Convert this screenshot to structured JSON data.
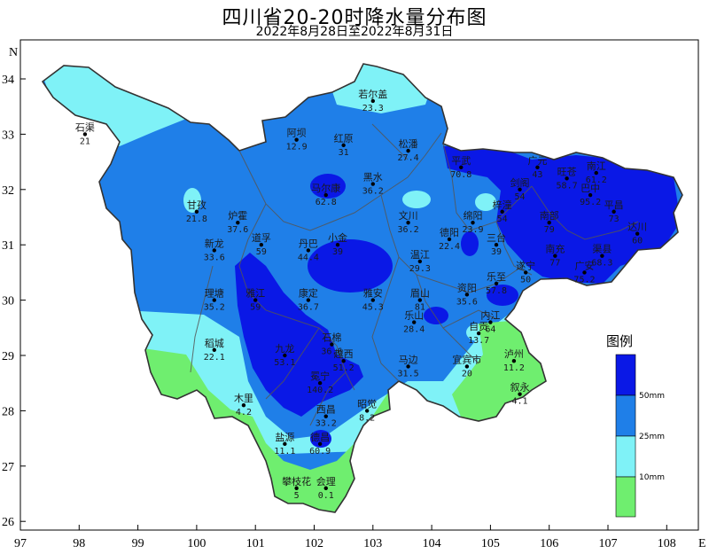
{
  "title": "四川省20-20时降水量分布图",
  "subtitle": "2022年8月28日至2022年8月31日",
  "axes": {
    "x_ticks": [
      "97",
      "98",
      "99",
      "100",
      "101",
      "102",
      "103",
      "104",
      "105",
      "106",
      "107",
      "108"
    ],
    "y_ticks": [
      "34",
      "33",
      "32",
      "31",
      "30",
      "29",
      "28",
      "27",
      "26"
    ],
    "x_label": "E",
    "y_label": "N"
  },
  "legend": {
    "title": "图例",
    "levels": [
      {
        "label": "50mm",
        "color": "#0a18e6"
      },
      {
        "label": "25mm",
        "color": "#1f7fe8"
      },
      {
        "label": "10mm",
        "color": "#7ff2f7"
      },
      {
        "label": "",
        "color": "#6fee6f"
      }
    ]
  },
  "colors": {
    "heavy": "#0a18e6",
    "medium": "#1f7fe8",
    "light": "#7ff2f7",
    "low": "#6fee6f"
  },
  "stations": [
    {
      "name": "若尔盖",
      "value": "23.3",
      "lon": 103.0,
      "lat": 33.6
    },
    {
      "name": "石渠",
      "value": "21",
      "lon": 98.1,
      "lat": 33.0
    },
    {
      "name": "阿坝",
      "value": "12.9",
      "lon": 101.7,
      "lat": 32.9
    },
    {
      "name": "红原",
      "value": "31",
      "lon": 102.5,
      "lat": 32.8
    },
    {
      "name": "松潘",
      "value": "27.4",
      "lon": 103.6,
      "lat": 32.7
    },
    {
      "name": "平武",
      "value": "70.8",
      "lon": 104.5,
      "lat": 32.4
    },
    {
      "name": "广元",
      "value": "43",
      "lon": 105.8,
      "lat": 32.4
    },
    {
      "name": "旺苍",
      "value": "58.7",
      "lon": 106.3,
      "lat": 32.2
    },
    {
      "name": "南江",
      "value": "61.2",
      "lon": 106.8,
      "lat": 32.3
    },
    {
      "name": "剑阁",
      "value": "54",
      "lon": 105.5,
      "lat": 32.0
    },
    {
      "name": "巴中",
      "value": "95.2",
      "lon": 106.7,
      "lat": 31.9
    },
    {
      "name": "平昌",
      "value": "73",
      "lon": 107.1,
      "lat": 31.6
    },
    {
      "name": "黑水",
      "value": "36.2",
      "lon": 103.0,
      "lat": 32.1
    },
    {
      "name": "马尔康",
      "value": "62.8",
      "lon": 102.2,
      "lat": 31.9
    },
    {
      "name": "甘孜",
      "value": "21.8",
      "lon": 100.0,
      "lat": 31.6
    },
    {
      "name": "炉霍",
      "value": "37.6",
      "lon": 100.7,
      "lat": 31.4
    },
    {
      "name": "文川",
      "value": "36.2",
      "lon": 103.6,
      "lat": 31.4
    },
    {
      "name": "绵阳",
      "value": "23.9",
      "lon": 104.7,
      "lat": 31.4
    },
    {
      "name": "梓潼",
      "value": "54",
      "lon": 105.2,
      "lat": 31.6
    },
    {
      "name": "南部",
      "value": "79",
      "lon": 106.0,
      "lat": 31.4
    },
    {
      "name": "达川",
      "value": "60",
      "lon": 107.5,
      "lat": 31.2
    },
    {
      "name": "新龙",
      "value": "33.6",
      "lon": 100.3,
      "lat": 30.9
    },
    {
      "name": "道孚",
      "value": "59",
      "lon": 101.1,
      "lat": 31.0
    },
    {
      "name": "丹巴",
      "value": "44.4",
      "lon": 101.9,
      "lat": 30.9
    },
    {
      "name": "小金",
      "value": "39",
      "lon": 102.4,
      "lat": 31.0
    },
    {
      "name": "德阳",
      "value": "22.4",
      "lon": 104.3,
      "lat": 31.1
    },
    {
      "name": "三台",
      "value": "39",
      "lon": 105.1,
      "lat": 31.0
    },
    {
      "name": "南充",
      "value": "77",
      "lon": 106.1,
      "lat": 30.8
    },
    {
      "name": "渠县",
      "value": "68.3",
      "lon": 106.9,
      "lat": 30.8
    },
    {
      "name": "温江",
      "value": "29.3",
      "lon": 103.8,
      "lat": 30.7
    },
    {
      "name": "遂宁",
      "value": "50",
      "lon": 105.6,
      "lat": 30.5
    },
    {
      "name": "广安",
      "value": "75.2",
      "lon": 106.6,
      "lat": 30.5
    },
    {
      "name": "理塘",
      "value": "35.2",
      "lon": 100.3,
      "lat": 30.0
    },
    {
      "name": "雅江",
      "value": "59",
      "lon": 101.0,
      "lat": 30.0
    },
    {
      "name": "康定",
      "value": "36.7",
      "lon": 101.9,
      "lat": 30.0
    },
    {
      "name": "雅安",
      "value": "45.3",
      "lon": 103.0,
      "lat": 30.0
    },
    {
      "name": "眉山",
      "value": "81",
      "lon": 103.8,
      "lat": 30.0
    },
    {
      "name": "资阳",
      "value": "35.6",
      "lon": 104.6,
      "lat": 30.1
    },
    {
      "name": "乐至",
      "value": "57.8",
      "lon": 105.1,
      "lat": 30.3
    },
    {
      "name": "内江",
      "value": "64",
      "lon": 105.0,
      "lat": 29.6
    },
    {
      "name": "乐山",
      "value": "28.4",
      "lon": 103.7,
      "lat": 29.6
    },
    {
      "name": "自贡",
      "value": "13.7",
      "lon": 104.8,
      "lat": 29.4
    },
    {
      "name": "稻城",
      "value": "22.1",
      "lon": 100.3,
      "lat": 29.1
    },
    {
      "name": "九龙",
      "value": "53.1",
      "lon": 101.5,
      "lat": 29.0
    },
    {
      "name": "石棉",
      "value": "36.6",
      "lon": 102.3,
      "lat": 29.2
    },
    {
      "name": "越西",
      "value": "51.2",
      "lon": 102.5,
      "lat": 28.9
    },
    {
      "name": "马边",
      "value": "31.5",
      "lon": 103.6,
      "lat": 28.8
    },
    {
      "name": "宜宾市",
      "value": "20",
      "lon": 104.6,
      "lat": 28.8
    },
    {
      "name": "泸州",
      "value": "11.2",
      "lon": 105.4,
      "lat": 28.9
    },
    {
      "name": "冕宁",
      "value": "140.2",
      "lon": 102.1,
      "lat": 28.5
    },
    {
      "name": "叙永",
      "value": "4.1",
      "lon": 105.5,
      "lat": 28.3
    },
    {
      "name": "木里",
      "value": "4.2",
      "lon": 100.8,
      "lat": 28.1
    },
    {
      "name": "西昌",
      "value": "33.2",
      "lon": 102.2,
      "lat": 27.9
    },
    {
      "name": "昭觉",
      "value": "8.2",
      "lon": 102.9,
      "lat": 28.0
    },
    {
      "name": "盐源",
      "value": "11.1",
      "lon": 101.5,
      "lat": 27.4
    },
    {
      "name": "德昌",
      "value": "60.9",
      "lon": 102.1,
      "lat": 27.4
    },
    {
      "name": "会理",
      "value": "0.1",
      "lon": 102.2,
      "lat": 26.6
    },
    {
      "name": "攀枝花",
      "value": "5",
      "lon": 101.7,
      "lat": 26.6
    }
  ]
}
